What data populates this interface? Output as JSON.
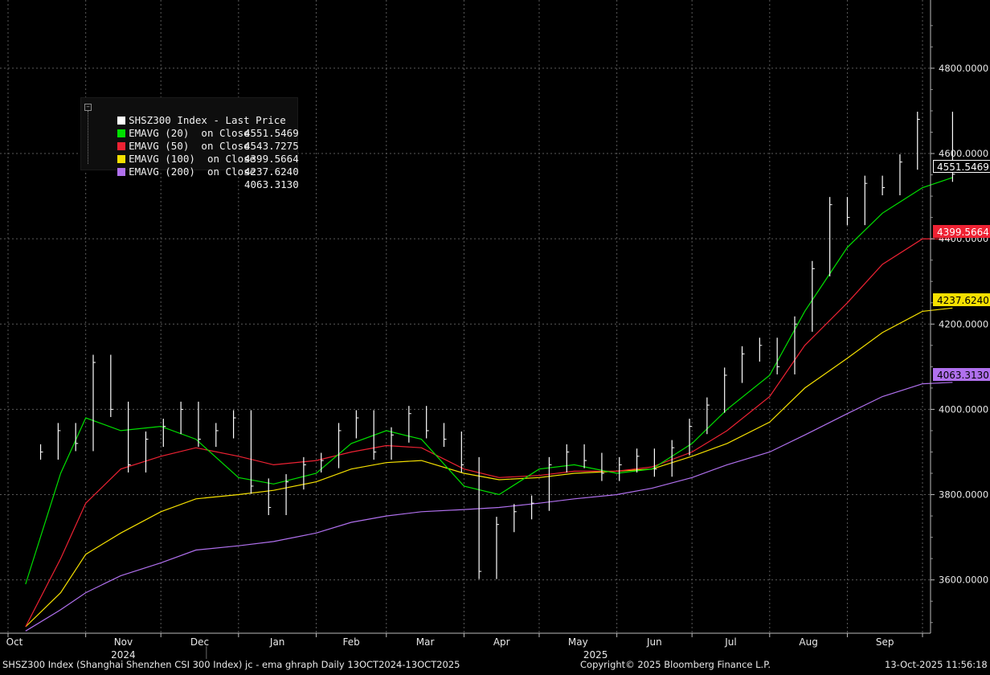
{
  "chart_data": {
    "type": "line",
    "title": "SHSZ300 Index (Shanghai Shenzhen CSI 300 Index) jc - ema ghraph Daily 13OCT2024-13OCT2025",
    "ylim": [
      3475,
      4960
    ],
    "y_ticks": [
      "4800.0000",
      "4600.0000",
      "4400.0000",
      "4200.0000",
      "4000.0000",
      "3800.0000",
      "3600.0000"
    ],
    "y_tick_values": [
      4800,
      4600,
      4400,
      4200,
      4000,
      3800,
      3600
    ],
    "x_month_labels": [
      "Oct",
      "Nov",
      "Dec",
      "Jan",
      "Feb",
      "Mar",
      "Apr",
      "May",
      "Jun",
      "Jul",
      "Aug",
      "Sep"
    ],
    "x_year_labels": [
      "2024",
      "2025"
    ],
    "grid": true,
    "legend_position": "top-left",
    "series": [
      {
        "name": "SHSZ300 Index - Last Price",
        "last": "4551.5469",
        "color": "#ffffff",
        "x": [
          "2024-10-14",
          "2024-10-21",
          "2024-10-28",
          "2024-11-04",
          "2024-11-11",
          "2024-11-18",
          "2024-11-25",
          "2024-12-02",
          "2024-12-09",
          "2024-12-16",
          "2024-12-23",
          "2024-12-30",
          "2025-01-06",
          "2025-01-13",
          "2025-01-20",
          "2025-01-27",
          "2025-02-03",
          "2025-02-10",
          "2025-02-17",
          "2025-02-24",
          "2025-03-03",
          "2025-03-10",
          "2025-03-17",
          "2025-03-24",
          "2025-03-31",
          "2025-04-07",
          "2025-04-14",
          "2025-04-21",
          "2025-04-28",
          "2025-05-05",
          "2025-05-12",
          "2025-05-19",
          "2025-05-26",
          "2025-06-02",
          "2025-06-09",
          "2025-06-16",
          "2025-06-23",
          "2025-06-30",
          "2025-07-07",
          "2025-07-14",
          "2025-07-21",
          "2025-07-28",
          "2025-08-04",
          "2025-08-11",
          "2025-08-18",
          "2025-08-25",
          "2025-09-01",
          "2025-09-08",
          "2025-09-15",
          "2025-09-22",
          "2025-09-29",
          "2025-10-13"
        ],
        "y": [
          3900,
          3950,
          3920,
          4110,
          4000,
          3870,
          3930,
          3960,
          4000,
          3930,
          3950,
          3980,
          3820,
          3770,
          3830,
          3870,
          3880,
          3950,
          3980,
          3900,
          3940,
          3990,
          3950,
          3930,
          3870,
          3620,
          3730,
          3760,
          3780,
          3870,
          3900,
          3880,
          3850,
          3870,
          3890,
          3860,
          3910,
          3960,
          4010,
          4080,
          4130,
          4150,
          4100,
          4200,
          4330,
          4480,
          4450,
          4530,
          4520,
          4580,
          4680,
          4551.5469
        ]
      },
      {
        "name": "EMAVG (20)  on Close",
        "last": "4543.7275",
        "color": "#00e000",
        "x": [
          "2024-10-08",
          "2024-10-22",
          "2024-11-01",
          "2024-11-15",
          "2024-12-01",
          "2024-12-15",
          "2025-01-01",
          "2025-01-15",
          "2025-02-01",
          "2025-02-15",
          "2025-03-01",
          "2025-03-15",
          "2025-04-01",
          "2025-04-15",
          "2025-05-01",
          "2025-05-15",
          "2025-06-01",
          "2025-06-15",
          "2025-07-01",
          "2025-07-15",
          "2025-08-01",
          "2025-08-15",
          "2025-09-01",
          "2025-09-15",
          "2025-10-01",
          "2025-10-13"
        ],
        "y": [
          3590,
          3850,
          3980,
          3950,
          3960,
          3930,
          3840,
          3825,
          3850,
          3920,
          3950,
          3930,
          3820,
          3800,
          3860,
          3870,
          3850,
          3860,
          3920,
          4000,
          4080,
          4230,
          4380,
          4460,
          4520,
          4543.7275
        ]
      },
      {
        "name": "EMAVG (50)  on Close",
        "last": "4399.5664",
        "color": "#ee2233",
        "x": [
          "2024-10-08",
          "2024-10-22",
          "2024-11-01",
          "2024-11-15",
          "2024-12-01",
          "2024-12-15",
          "2025-01-01",
          "2025-01-15",
          "2025-02-01",
          "2025-02-15",
          "2025-03-01",
          "2025-03-15",
          "2025-04-01",
          "2025-04-15",
          "2025-05-01",
          "2025-05-15",
          "2025-06-01",
          "2025-06-15",
          "2025-07-01",
          "2025-07-15",
          "2025-08-01",
          "2025-08-15",
          "2025-09-01",
          "2025-09-15",
          "2025-10-01",
          "2025-10-13"
        ],
        "y": [
          3490,
          3650,
          3780,
          3860,
          3890,
          3910,
          3890,
          3870,
          3880,
          3900,
          3915,
          3910,
          3860,
          3840,
          3845,
          3855,
          3855,
          3865,
          3900,
          3950,
          4030,
          4150,
          4250,
          4340,
          4400,
          4399.5664
        ]
      },
      {
        "name": "EMAVG (100)  on Close",
        "last": "4237.6240",
        "color": "#f5e000",
        "x": [
          "2024-10-08",
          "2024-10-22",
          "2024-11-01",
          "2024-11-15",
          "2024-12-01",
          "2024-12-15",
          "2025-01-01",
          "2025-01-15",
          "2025-02-01",
          "2025-02-15",
          "2025-03-01",
          "2025-03-15",
          "2025-04-01",
          "2025-04-15",
          "2025-05-01",
          "2025-05-15",
          "2025-06-01",
          "2025-06-15",
          "2025-07-01",
          "2025-07-15",
          "2025-08-01",
          "2025-08-15",
          "2025-09-01",
          "2025-09-15",
          "2025-10-01",
          "2025-10-13"
        ],
        "y": [
          3490,
          3570,
          3660,
          3710,
          3760,
          3790,
          3800,
          3810,
          3830,
          3860,
          3875,
          3880,
          3850,
          3835,
          3840,
          3850,
          3855,
          3860,
          3890,
          3920,
          3970,
          4050,
          4120,
          4180,
          4230,
          4237.624
        ]
      },
      {
        "name": "EMAVG (200)  on Close",
        "last": "4063.3130",
        "color": "#b070ee",
        "x": [
          "2024-10-08",
          "2024-10-22",
          "2024-11-01",
          "2024-11-15",
          "2024-12-01",
          "2024-12-15",
          "2025-01-01",
          "2025-01-15",
          "2025-02-01",
          "2025-02-15",
          "2025-03-01",
          "2025-03-15",
          "2025-04-01",
          "2025-04-15",
          "2025-05-01",
          "2025-05-15",
          "2025-06-01",
          "2025-06-15",
          "2025-07-01",
          "2025-07-15",
          "2025-08-01",
          "2025-08-15",
          "2025-09-01",
          "2025-09-15",
          "2025-10-01",
          "2025-10-13"
        ],
        "y": [
          3480,
          3530,
          3570,
          3610,
          3640,
          3670,
          3680,
          3690,
          3710,
          3735,
          3750,
          3760,
          3765,
          3770,
          3780,
          3790,
          3800,
          3815,
          3840,
          3870,
          3900,
          3940,
          3990,
          4030,
          4060,
          4063.313
        ]
      }
    ]
  },
  "legend": {
    "rows": [
      {
        "label": "SHSZ300 Index - Last Price",
        "value": "4551.5469",
        "color": "#ffffff"
      },
      {
        "label": "EMAVG (20)  on Close",
        "value": "4543.7275",
        "color": "#00e000"
      },
      {
        "label": "EMAVG (50)  on Close",
        "value": "4399.5664",
        "color": "#ee2233"
      },
      {
        "label": "EMAVG (100)  on Close",
        "value": "4237.6240",
        "color": "#f5e000"
      },
      {
        "label": "EMAVG (200)  on Close",
        "value": "4063.3130",
        "color": "#b070ee"
      }
    ],
    "collapse_glyph": "−"
  },
  "tags": [
    {
      "text": "4551.5469",
      "bg": "#000000",
      "fg": "#ffffff",
      "border": "#ffffff"
    },
    {
      "text": "4399.5664",
      "bg": "#ee2233",
      "fg": "#ffffff",
      "border": "#ee2233"
    },
    {
      "text": "4237.6240",
      "bg": "#f5e000",
      "fg": "#000000",
      "border": "#f5e000"
    },
    {
      "text": "4063.3130",
      "bg": "#b070ee",
      "fg": "#000000",
      "border": "#b070ee"
    }
  ],
  "footer": {
    "left": "SHSZ300 Index (Shanghai Shenzhen CSI 300 Index) jc - ema ghraph Daily 13OCT2024-13OCT2025",
    "center": "Copyright© 2025 Bloomberg Finance L.P.",
    "right": "13-Oct-2025 11:56:18"
  }
}
